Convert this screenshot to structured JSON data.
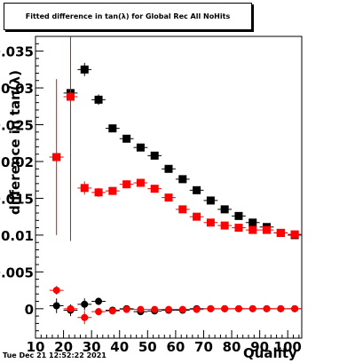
{
  "title": "Fitted difference in tan(λ) for Global Rec All NoHits",
  "timestamp": "Tue Dec 21 12:52:22 2021",
  "colors": {
    "black_series": "#000000",
    "red_series": "#ff0000",
    "background": "#ffffff"
  },
  "chart_data": {
    "type": "scatter",
    "title": "Fitted difference in tan(λ) for Global Rec All NoHits",
    "xlabel": "Quality",
    "ylabel": "difference in tan(λ)",
    "xlim": [
      10,
      105
    ],
    "ylim": [
      -0.004,
      0.037
    ],
    "x_ticks": [
      10,
      20,
      30,
      40,
      50,
      60,
      70,
      80,
      90,
      100
    ],
    "x_tick_labels": [
      "10",
      "20",
      "30",
      "40",
      "50",
      "60",
      "70",
      "80",
      "90",
      "100"
    ],
    "y_ticks": [
      0,
      0.005,
      0.01,
      0.015,
      0.02,
      0.025,
      0.03,
      0.035
    ],
    "y_tick_labels": [
      "0",
      "0.005",
      "0.01",
      "0.015",
      "0.02",
      "0.025",
      "0.03",
      "0.035"
    ],
    "grid": false,
    "series": [
      {
        "color": "#000000",
        "marker": "square",
        "x": [
          17.5,
          22.5,
          27.5,
          32.5,
          37.5,
          42.5,
          47.5,
          52.5,
          57.5,
          62.5,
          67.5,
          72.5,
          77.5,
          82.5,
          87.5,
          92.5,
          97.5,
          102.5
        ],
        "y": [
          0.0206,
          0.0293,
          0.0325,
          0.0284,
          0.0245,
          0.0231,
          0.0219,
          0.0208,
          0.019,
          0.0176,
          0.0161,
          0.0147,
          0.0135,
          0.0126,
          0.0117,
          0.0111,
          0.0103,
          0.01
        ],
        "yerr": [
          0.0005,
          0.0005,
          0.0009,
          0.0007,
          0.0004,
          0.0004,
          0.0004,
          0.0004,
          0.0004,
          0.0004,
          0.0004,
          0.0004,
          0.0004,
          0.0004,
          0.0004,
          0.0004,
          0.0004,
          0.0004
        ]
      },
      {
        "color": "#ff0000",
        "marker": "square",
        "x": [
          17.5,
          22.5,
          27.5,
          32.5,
          37.5,
          42.5,
          47.5,
          52.5,
          57.5,
          62.5,
          67.5,
          72.5,
          77.5,
          82.5,
          87.5,
          92.5,
          97.5,
          102.5
        ],
        "y": [
          0.0206,
          0.0288,
          0.0164,
          0.0158,
          0.016,
          0.0169,
          0.0171,
          0.0163,
          0.0151,
          0.0135,
          0.0125,
          0.0117,
          0.0113,
          0.011,
          0.0107,
          0.0107,
          0.0103,
          0.0101
        ],
        "yerr": [
          0.0106,
          0.0196,
          0.0009,
          0.0006,
          0.0004,
          0.0004,
          0.0004,
          0.0004,
          0.0004,
          0.0004,
          0.0004,
          0.0004,
          0.0004,
          0.0004,
          0.0004,
          0.0004,
          0.0004,
          0.0004
        ]
      },
      {
        "color": "#000000",
        "marker": "circle",
        "x": [
          17.5,
          22.5,
          27.5,
          32.5,
          37.5,
          42.5,
          47.5,
          52.5,
          57.5,
          62.5,
          67.5,
          72.5,
          77.5,
          82.5,
          87.5,
          92.5,
          97.5,
          102.5
        ],
        "y": [
          0.0004,
          -0.0002,
          0.0006,
          0.001,
          -0.0002,
          0.0,
          -0.0004,
          -0.0003,
          -0.0002,
          -0.0002,
          0.0,
          0.0,
          0.0,
          0.0,
          0.0,
          0.0,
          0.0,
          0.0
        ],
        "yerr": [
          0.001,
          0.0008,
          0.0008,
          0.0005,
          0.0004,
          0.0003,
          0.0003,
          0.0003,
          0.0003,
          0.0003,
          0.0002,
          0.0002,
          0.0002,
          0.0002,
          0.0002,
          0.0002,
          0.0002,
          0.0002
        ]
      },
      {
        "color": "#ff0000",
        "marker": "circle",
        "x": [
          17.5,
          22.5,
          27.5,
          32.5,
          37.5,
          42.5,
          47.5,
          52.5,
          57.5,
          62.5,
          67.5,
          72.5,
          77.5,
          82.5,
          87.5,
          92.5,
          97.5,
          102.5
        ],
        "y": [
          0.0025,
          0.0,
          -0.0012,
          -0.0004,
          -0.0003,
          -0.0001,
          -0.0001,
          -0.0001,
          -0.0001,
          -0.0001,
          -0.0001,
          0.0,
          0.0,
          0.0,
          0.0,
          0.0,
          0.0,
          0.0
        ],
        "yerr": [
          0.0006,
          0.0005,
          0.0009,
          0.0005,
          0.0004,
          0.0003,
          0.0003,
          0.0003,
          0.0003,
          0.0003,
          0.0002,
          0.0002,
          0.0002,
          0.0002,
          0.0002,
          0.0002,
          0.0002,
          0.0002
        ]
      }
    ]
  }
}
